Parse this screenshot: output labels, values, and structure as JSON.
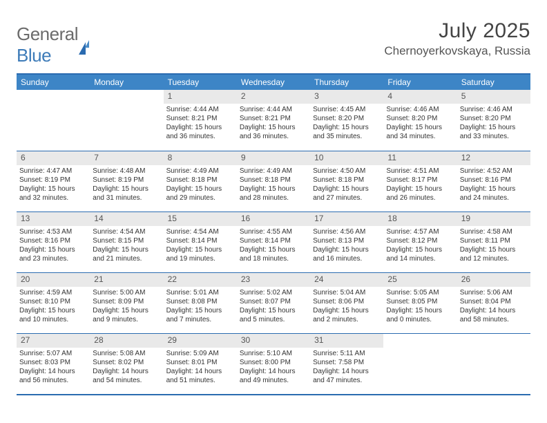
{
  "logo": {
    "text1": "General",
    "text2": "Blue"
  },
  "title": "July 2025",
  "location": "Chernoyerkovskaya, Russia",
  "colors": {
    "header_bg": "#3d85c6",
    "border": "#2a6bb0",
    "daynum_bg": "#e9e9e9",
    "text": "#333333",
    "title_color": "#444444"
  },
  "dayNames": [
    "Sunday",
    "Monday",
    "Tuesday",
    "Wednesday",
    "Thursday",
    "Friday",
    "Saturday"
  ],
  "weeks": [
    [
      null,
      null,
      {
        "n": "1",
        "sr": "4:44 AM",
        "ss": "8:21 PM",
        "dh": "15",
        "dm": "36"
      },
      {
        "n": "2",
        "sr": "4:44 AM",
        "ss": "8:21 PM",
        "dh": "15",
        "dm": "36"
      },
      {
        "n": "3",
        "sr": "4:45 AM",
        "ss": "8:20 PM",
        "dh": "15",
        "dm": "35"
      },
      {
        "n": "4",
        "sr": "4:46 AM",
        "ss": "8:20 PM",
        "dh": "15",
        "dm": "34"
      },
      {
        "n": "5",
        "sr": "4:46 AM",
        "ss": "8:20 PM",
        "dh": "15",
        "dm": "33"
      }
    ],
    [
      {
        "n": "6",
        "sr": "4:47 AM",
        "ss": "8:19 PM",
        "dh": "15",
        "dm": "32"
      },
      {
        "n": "7",
        "sr": "4:48 AM",
        "ss": "8:19 PM",
        "dh": "15",
        "dm": "31"
      },
      {
        "n": "8",
        "sr": "4:49 AM",
        "ss": "8:18 PM",
        "dh": "15",
        "dm": "29"
      },
      {
        "n": "9",
        "sr": "4:49 AM",
        "ss": "8:18 PM",
        "dh": "15",
        "dm": "28"
      },
      {
        "n": "10",
        "sr": "4:50 AM",
        "ss": "8:18 PM",
        "dh": "15",
        "dm": "27"
      },
      {
        "n": "11",
        "sr": "4:51 AM",
        "ss": "8:17 PM",
        "dh": "15",
        "dm": "26"
      },
      {
        "n": "12",
        "sr": "4:52 AM",
        "ss": "8:16 PM",
        "dh": "15",
        "dm": "24"
      }
    ],
    [
      {
        "n": "13",
        "sr": "4:53 AM",
        "ss": "8:16 PM",
        "dh": "15",
        "dm": "23"
      },
      {
        "n": "14",
        "sr": "4:54 AM",
        "ss": "8:15 PM",
        "dh": "15",
        "dm": "21"
      },
      {
        "n": "15",
        "sr": "4:54 AM",
        "ss": "8:14 PM",
        "dh": "15",
        "dm": "19"
      },
      {
        "n": "16",
        "sr": "4:55 AM",
        "ss": "8:14 PM",
        "dh": "15",
        "dm": "18"
      },
      {
        "n": "17",
        "sr": "4:56 AM",
        "ss": "8:13 PM",
        "dh": "15",
        "dm": "16"
      },
      {
        "n": "18",
        "sr": "4:57 AM",
        "ss": "8:12 PM",
        "dh": "15",
        "dm": "14"
      },
      {
        "n": "19",
        "sr": "4:58 AM",
        "ss": "8:11 PM",
        "dh": "15",
        "dm": "12"
      }
    ],
    [
      {
        "n": "20",
        "sr": "4:59 AM",
        "ss": "8:10 PM",
        "dh": "15",
        "dm": "10"
      },
      {
        "n": "21",
        "sr": "5:00 AM",
        "ss": "8:09 PM",
        "dh": "15",
        "dm": "9"
      },
      {
        "n": "22",
        "sr": "5:01 AM",
        "ss": "8:08 PM",
        "dh": "15",
        "dm": "7"
      },
      {
        "n": "23",
        "sr": "5:02 AM",
        "ss": "8:07 PM",
        "dh": "15",
        "dm": "5"
      },
      {
        "n": "24",
        "sr": "5:04 AM",
        "ss": "8:06 PM",
        "dh": "15",
        "dm": "2"
      },
      {
        "n": "25",
        "sr": "5:05 AM",
        "ss": "8:05 PM",
        "dh": "15",
        "dm": "0"
      },
      {
        "n": "26",
        "sr": "5:06 AM",
        "ss": "8:04 PM",
        "dh": "14",
        "dm": "58"
      }
    ],
    [
      {
        "n": "27",
        "sr": "5:07 AM",
        "ss": "8:03 PM",
        "dh": "14",
        "dm": "56"
      },
      {
        "n": "28",
        "sr": "5:08 AM",
        "ss": "8:02 PM",
        "dh": "14",
        "dm": "54"
      },
      {
        "n": "29",
        "sr": "5:09 AM",
        "ss": "8:01 PM",
        "dh": "14",
        "dm": "51"
      },
      {
        "n": "30",
        "sr": "5:10 AM",
        "ss": "8:00 PM",
        "dh": "14",
        "dm": "49"
      },
      {
        "n": "31",
        "sr": "5:11 AM",
        "ss": "7:58 PM",
        "dh": "14",
        "dm": "47"
      },
      null,
      null
    ]
  ],
  "labels": {
    "sunrise": "Sunrise:",
    "sunset": "Sunset:",
    "daylight": "Daylight:",
    "hours": "hours",
    "and": "and",
    "minutes": "minutes."
  }
}
